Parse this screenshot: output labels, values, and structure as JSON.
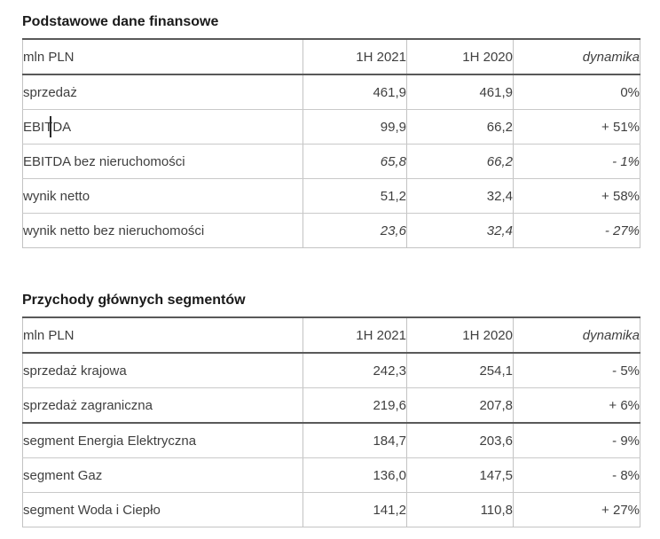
{
  "colors": {
    "background": "#ffffff",
    "title_text": "#1a1a1a",
    "body_text": "#3f3f3f",
    "dark_border": "#595959",
    "light_border": "#c3c3c3"
  },
  "tables": [
    {
      "title": "Podstawowe dane finansowe",
      "unit_header": "mln PLN",
      "columns": [
        "1H 2021",
        "1H 2020",
        "dynamika"
      ],
      "rows": [
        {
          "label": "sprzedaż",
          "h1_2021": "461,9",
          "h1_2020": "461,9",
          "dynamika": "0%"
        },
        {
          "label": "EBITDA",
          "h1_2021": "99,9",
          "h1_2020": "66,2",
          "dynamika": "+ 51%"
        },
        {
          "label": "EBITDA bez nieruchomości",
          "h1_2021": "65,8",
          "h1_2020": "66,2",
          "dynamika": "- 1%"
        },
        {
          "label": "wynik netto",
          "h1_2021": "51,2",
          "h1_2020": "32,4",
          "dynamika": "+ 58%"
        },
        {
          "label": "wynik netto bez nieruchomości",
          "h1_2021": "23,6",
          "h1_2020": "32,4",
          "dynamika": "- 27%"
        }
      ]
    },
    {
      "title": "Przychody głównych segmentów",
      "unit_header": "mln PLN",
      "columns": [
        "1H 2021",
        "1H 2020",
        "dynamika"
      ],
      "rows": [
        {
          "label": "sprzedaż krajowa",
          "h1_2021": "242,3",
          "h1_2020": "254,1",
          "dynamika": "- 5%"
        },
        {
          "label": "sprzedaż zagraniczna",
          "h1_2021": "219,6",
          "h1_2020": "207,8",
          "dynamika": "+ 6%"
        },
        {
          "label": "segment Energia Elektryczna",
          "h1_2021": "184,7",
          "h1_2020": "203,6",
          "dynamika": "- 9%"
        },
        {
          "label": "segment Gaz",
          "h1_2021": "136,0",
          "h1_2020": "147,5",
          "dynamika": "- 8%"
        },
        {
          "label": "segment Woda i Ciepło",
          "h1_2021": "141,2",
          "h1_2020": "110,8",
          "dynamika": "+ 27%"
        }
      ]
    }
  ]
}
